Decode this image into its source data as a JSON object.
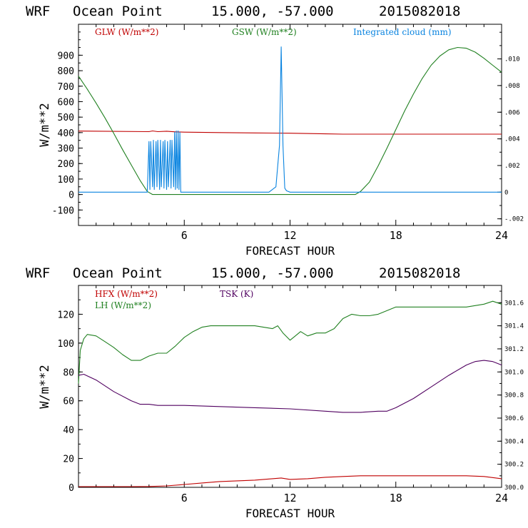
{
  "chart_data": [
    {
      "type": "line",
      "header": {
        "model": "WRF",
        "point": "Ocean Point",
        "coords": "15.000, -57.000",
        "date": "2015082018"
      },
      "xlabel": "FORECAST HOUR",
      "ylabel": "W/m**2",
      "xlim": [
        0,
        24
      ],
      "ylim": [
        -200,
        1100
      ],
      "y2lim": [
        -0.0025,
        0.0126
      ],
      "x_ticks": [
        "6",
        "12",
        "18",
        "24"
      ],
      "y_ticks": [
        "-100",
        "0",
        "100",
        "200",
        "300",
        "400",
        "500",
        "600",
        "700",
        "800",
        "900"
      ],
      "y2_ticks": [
        "-.002",
        "0",
        ".002",
        ".004",
        ".006",
        ".008",
        ".010"
      ],
      "legend": [
        "GLW (W/m**2)",
        "GSW (W/m**2)",
        "Integrated cloud (mm)"
      ],
      "colors": {
        "glw": "#c00000",
        "gsw": "#208020",
        "cloud": "#0a84e0",
        "axis": "#000000"
      },
      "series": [
        {
          "name": "GLW (W/m**2)",
          "axis": "left",
          "x": [
            0,
            4,
            4.2,
            4.5,
            5,
            5.5,
            6,
            8,
            10,
            12,
            14,
            15,
            16,
            18,
            20,
            22,
            24
          ],
          "y": [
            410,
            406,
            411,
            406,
            409,
            405,
            403,
            400,
            398,
            396,
            392,
            390,
            390,
            390,
            390,
            390,
            390
          ]
        },
        {
          "name": "GSW (W/m**2)",
          "axis": "left",
          "x": [
            0,
            0.5,
            1,
            1.5,
            2,
            2.5,
            3,
            3.5,
            3.9,
            4.2,
            15.7,
            16,
            16.5,
            17,
            17.5,
            18,
            18.5,
            19,
            19.5,
            20,
            20.5,
            21,
            21.5,
            22,
            22.5,
            23,
            23.5,
            24
          ],
          "y": [
            765,
            680,
            590,
            495,
            395,
            290,
            190,
            90,
            20,
            0,
            0,
            20,
            80,
            185,
            300,
            420,
            540,
            650,
            750,
            835,
            895,
            935,
            950,
            945,
            920,
            880,
            835,
            790
          ]
        },
        {
          "name": "Integrated cloud (mm)",
          "axis": "right",
          "x": [
            0,
            3.9,
            4.0,
            4.05,
            4.1,
            4.2,
            4.25,
            4.3,
            4.4,
            4.45,
            4.5,
            4.6,
            4.65,
            4.7,
            4.8,
            4.85,
            4.9,
            5.0,
            5.05,
            5.1,
            5.2,
            5.25,
            5.3,
            5.4,
            5.45,
            5.5,
            5.55,
            5.6,
            5.65,
            5.7,
            5.75,
            5.8,
            10.8,
            11.0,
            11.2,
            11.4,
            11.5,
            11.6,
            11.7,
            11.8,
            12.0,
            24
          ],
          "y": [
            0,
            0,
            0.0038,
            0.0002,
            0.0038,
            0.0004,
            0.0039,
            0.0002,
            0.0038,
            0.0004,
            0.0039,
            0.0002,
            0.0039,
            0.0004,
            0.0038,
            0.0003,
            0.0039,
            0.0002,
            0.0038,
            0.0004,
            0.0039,
            0.0003,
            0.0039,
            0.0004,
            0.0045,
            0.0002,
            0.0046,
            0.0003,
            0.0046,
            0.0002,
            0.0045,
            0,
            0,
            0.0002,
            0.0004,
            0.0035,
            0.0109,
            0.0035,
            0.0003,
            0.0001,
            0,
            0
          ]
        }
      ]
    },
    {
      "type": "line",
      "header": {
        "model": "WRF",
        "point": "Ocean Point",
        "coords": "15.000, -57.000",
        "date": "2015082018"
      },
      "xlabel": "FORECAST HOUR",
      "ylabel": "W/m**2",
      "xlim": [
        0,
        24
      ],
      "ylim": [
        0,
        140
      ],
      "y2lim": [
        300.0,
        301.75
      ],
      "x_ticks": [
        "6",
        "12",
        "18",
        "24"
      ],
      "y_ticks": [
        "0",
        "20",
        "40",
        "60",
        "80",
        "100",
        "120"
      ],
      "y2_ticks": [
        "300.0",
        "300.2",
        "300.4",
        "300.6",
        "300.8",
        "301.0",
        "301.2",
        "301.4",
        "301.6"
      ],
      "legend": [
        "HFX (W/m**2)",
        "LH (W/m**2)",
        "TSK (K)"
      ],
      "colors": {
        "hfx": "#c00000",
        "lh": "#208020",
        "tsk": "#500060",
        "axis": "#000000"
      },
      "series": [
        {
          "name": "HFX (W/m**2)",
          "axis": "left",
          "x": [
            0,
            3,
            4,
            5,
            6,
            7,
            8,
            9,
            10,
            11,
            11.5,
            12,
            13,
            14,
            15,
            16,
            17,
            18,
            19,
            20,
            21,
            22,
            23,
            24
          ],
          "y": [
            0.5,
            0.5,
            0.6,
            1,
            2,
            3,
            4,
            4.5,
            5,
            6,
            6.5,
            5.5,
            6,
            7,
            7.5,
            8,
            8,
            8,
            8,
            8,
            8,
            8,
            7.5,
            6
          ]
        },
        {
          "name": "LH (W/m**2)",
          "axis": "left",
          "x": [
            0,
            0.1,
            0.3,
            0.5,
            1,
            1.5,
            2,
            2.5,
            3,
            3.5,
            4,
            4.5,
            5,
            5.5,
            6,
            6.5,
            7,
            7.5,
            8,
            9,
            10,
            11,
            11.3,
            11.6,
            12,
            12.3,
            12.6,
            13,
            13.5,
            14,
            14.5,
            15,
            15.5,
            16,
            16.5,
            17,
            18,
            19,
            20,
            21,
            22,
            23,
            23.5,
            24
          ],
          "y": [
            72,
            95,
            103,
            106,
            105,
            101,
            97,
            92,
            88,
            88,
            91,
            93,
            93,
            98,
            104,
            108,
            111,
            112,
            112,
            112,
            112,
            110,
            112,
            107,
            102,
            105,
            108,
            105,
            107,
            107,
            110,
            117,
            120,
            119,
            119,
            120,
            125,
            125,
            125,
            125,
            125,
            127,
            129,
            127
          ]
        },
        {
          "name": "TSK (K)",
          "axis": "right",
          "x": [
            0,
            0.3,
            1,
            2,
            3,
            3.5,
            4,
            4.5,
            5,
            6,
            8,
            10,
            12,
            14,
            15,
            15.5,
            16,
            17,
            17.5,
            18,
            19,
            20,
            21,
            22,
            22.5,
            23,
            23.5,
            24
          ],
          "y": [
            300.97,
            300.98,
            300.93,
            300.83,
            300.75,
            300.72,
            300.72,
            300.71,
            300.71,
            300.71,
            300.7,
            300.69,
            300.68,
            300.66,
            300.65,
            300.65,
            300.65,
            300.66,
            300.66,
            300.69,
            300.77,
            300.87,
            300.97,
            301.06,
            301.09,
            301.1,
            301.09,
            301.06
          ]
        }
      ]
    }
  ]
}
